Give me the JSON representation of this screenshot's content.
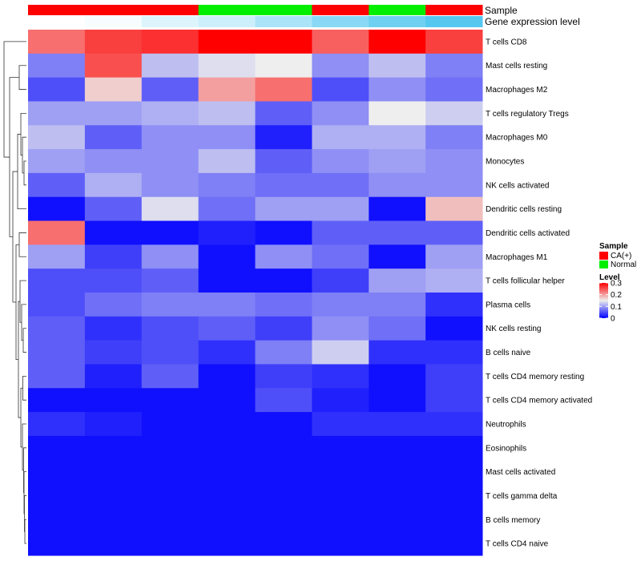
{
  "chart_data": {
    "type": "heatmap",
    "annotation_tracks": {
      "sample": {
        "label": "Sample",
        "values": [
          "CA(+)",
          "CA(+)",
          "CA(+)",
          "Normal",
          "Normal",
          "CA(+)",
          "Normal",
          "CA(+)"
        ]
      },
      "gene_expression": {
        "label": "Gene expression level",
        "values": [
          0.0,
          0.05,
          0.2,
          0.3,
          0.5,
          0.7,
          0.85,
          1.0
        ]
      }
    },
    "legend": {
      "sample_title": "Sample",
      "sample_entries": [
        {
          "label": "CA(+)",
          "color": "#ff0000"
        },
        {
          "label": "Normal",
          "color": "#00ee00"
        }
      ],
      "level_title": "Level",
      "level_ticks": [
        "0.3",
        "0.2",
        "0.1",
        "0"
      ],
      "level_tick_values": [
        0.3,
        0.2,
        0.1,
        0
      ]
    },
    "color_scale": {
      "min": 0,
      "mid": 0.15,
      "max": 0.3,
      "low": "#0000ff",
      "midcolor": "#eeeeee",
      "high": "#ff0000"
    },
    "expression_track_colors": {
      "low": "#ffffff",
      "high": "#56c8f0"
    },
    "rows": [
      "T cells CD8",
      "Mast cells resting",
      "Macrophages M2",
      "T cells regulatory  Tregs",
      "Macrophages M0",
      "Monocytes",
      "NK cells activated",
      "Dendritic cells resting",
      "Dendritic cells activated",
      "Macrophages M1",
      "T cells follicular helper",
      "Plasma cells",
      "NK cells resting",
      "B cells naive",
      "T cells CD4 memory resting",
      "T cells CD4 memory activated",
      "Neutrophils",
      "Eosinophils",
      "Mast cells activated",
      "T cells gamma delta",
      "B cells memory",
      "T cells CD4 naive"
    ],
    "values": [
      [
        0.23,
        0.26,
        0.27,
        0.3,
        0.3,
        0.24,
        0.3,
        0.26
      ],
      [
        0.08,
        0.25,
        0.12,
        0.14,
        0.15,
        0.09,
        0.12,
        0.08
      ],
      [
        0.05,
        0.17,
        0.06,
        0.2,
        0.23,
        0.05,
        0.09,
        0.07
      ],
      [
        0.1,
        0.1,
        0.11,
        0.12,
        0.06,
        0.09,
        0.15,
        0.13
      ],
      [
        0.12,
        0.06,
        0.09,
        0.09,
        0.02,
        0.11,
        0.11,
        0.08
      ],
      [
        0.1,
        0.09,
        0.09,
        0.12,
        0.06,
        0.09,
        0.1,
        0.09
      ],
      [
        0.06,
        0.11,
        0.09,
        0.08,
        0.07,
        0.07,
        0.09,
        0.09
      ],
      [
        0.01,
        0.06,
        0.14,
        0.07,
        0.1,
        0.1,
        0.01,
        0.18
      ],
      [
        0.23,
        0.01,
        0.01,
        0.02,
        0.01,
        0.06,
        0.06,
        0.06
      ],
      [
        0.1,
        0.04,
        0.09,
        0.01,
        0.09,
        0.07,
        0.01,
        0.1
      ],
      [
        0.05,
        0.05,
        0.06,
        0.01,
        0.01,
        0.04,
        0.1,
        0.11
      ],
      [
        0.05,
        0.07,
        0.08,
        0.08,
        0.07,
        0.08,
        0.08,
        0.03
      ],
      [
        0.06,
        0.03,
        0.05,
        0.06,
        0.04,
        0.09,
        0.07,
        0.01
      ],
      [
        0.06,
        0.04,
        0.05,
        0.03,
        0.08,
        0.13,
        0.03,
        0.03
      ],
      [
        0.06,
        0.02,
        0.06,
        0.01,
        0.04,
        0.03,
        0.01,
        0.04
      ],
      [
        0.01,
        0.01,
        0.01,
        0.01,
        0.05,
        0.02,
        0.01,
        0.04
      ],
      [
        0.03,
        0.02,
        0.01,
        0.01,
        0.01,
        0.03,
        0.03,
        0.03
      ],
      [
        0.01,
        0.01,
        0.01,
        0.01,
        0.01,
        0.01,
        0.01,
        0.01
      ],
      [
        0.01,
        0.01,
        0.01,
        0.01,
        0.01,
        0.01,
        0.01,
        0.01
      ],
      [
        0.01,
        0.01,
        0.01,
        0.01,
        0.01,
        0.01,
        0.01,
        0.01
      ],
      [
        0.01,
        0.01,
        0.01,
        0.01,
        0.01,
        0.01,
        0.01,
        0.01
      ],
      [
        0.01,
        0.01,
        0.01,
        0.01,
        0.01,
        0.01,
        0.01,
        0.01
      ]
    ]
  }
}
